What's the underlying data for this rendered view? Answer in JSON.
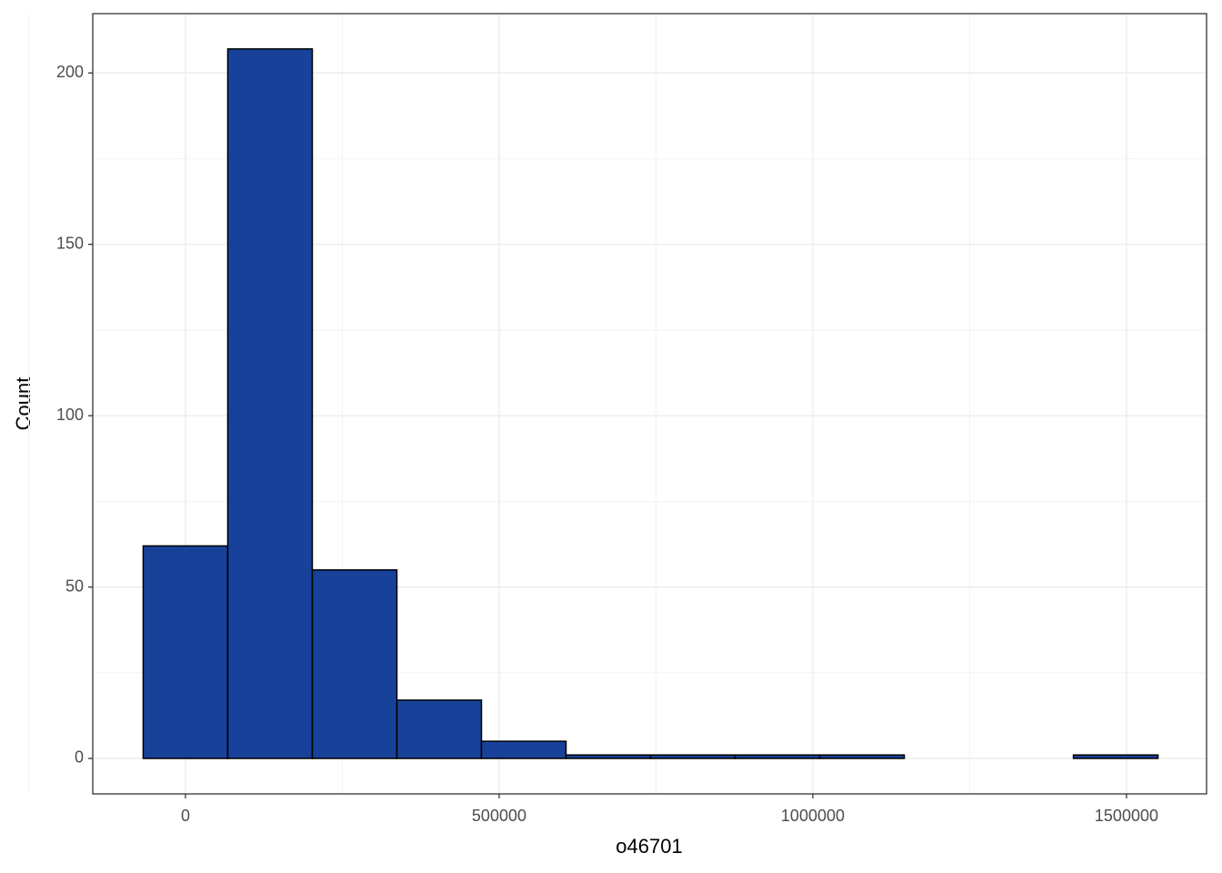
{
  "chart_data": {
    "type": "histogram",
    "x_label": "o46701",
    "y_label": "Count",
    "bins": [
      -67400,
      67400,
      202200,
      337000,
      471800,
      606600,
      741400,
      876200,
      1011000,
      1145800,
      1280600,
      1415400,
      1550200
    ],
    "counts": [
      62,
      207,
      55,
      17,
      5,
      1,
      1,
      1,
      1,
      0,
      0,
      1
    ],
    "color": "#18429a",
    "edge_color": "#000000",
    "xlim": [
      -147800,
      1627600
    ],
    "xticks": [
      0,
      500000,
      1000000,
      1500000
    ],
    "ylim": [
      -10.35,
      217.3
    ],
    "yticks": [
      0,
      50,
      100,
      150,
      200
    ],
    "grid": true,
    "minor_grid": true
  }
}
